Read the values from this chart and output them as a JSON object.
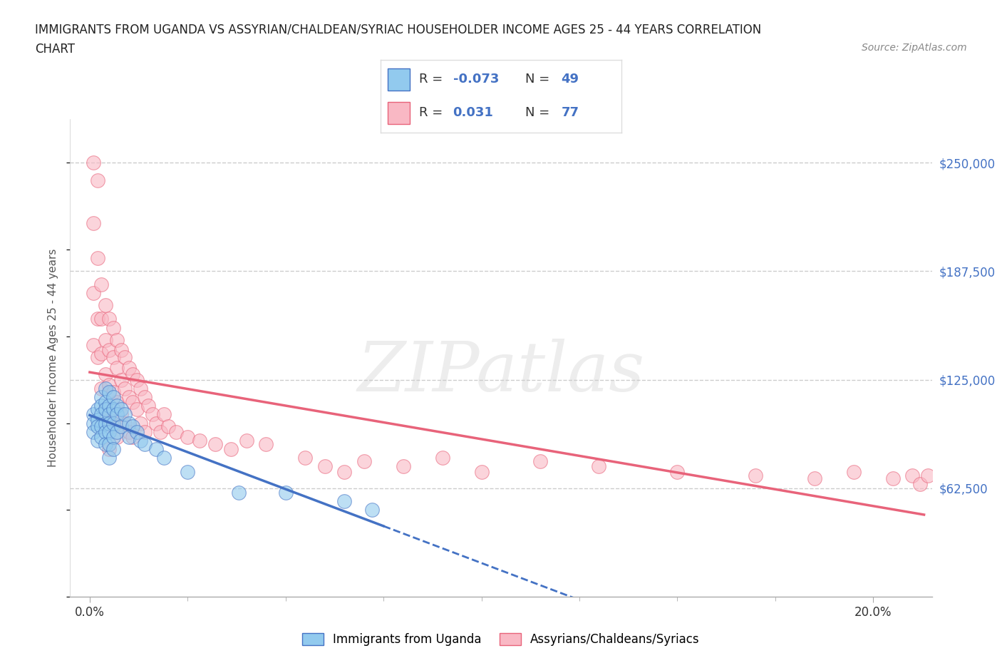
{
  "title_line1": "IMMIGRANTS FROM UGANDA VS ASSYRIAN/CHALDEAN/SYRIAC HOUSEHOLDER INCOME AGES 25 - 44 YEARS CORRELATION",
  "title_line2": "CHART",
  "source": "Source: ZipAtlas.com",
  "xlabel_ticks": [
    "0.0%",
    "20.0%"
  ],
  "xlabel_tick_vals": [
    0.0,
    0.2
  ],
  "ylabel": "Householder Income Ages 25 - 44 years",
  "ylabel_ticks": [
    "$62,500",
    "$125,000",
    "$187,500",
    "$250,000"
  ],
  "ylabel_tick_vals": [
    62500,
    125000,
    187500,
    250000
  ],
  "ylim": [
    0,
    275000
  ],
  "xlim": [
    -0.005,
    0.215
  ],
  "legend_labels": [
    "Immigrants from Uganda",
    "Assyrians/Chaldeans/Syriacs"
  ],
  "R_uganda": -0.073,
  "N_uganda": 49,
  "R_assyrian": 0.031,
  "N_assyrian": 77,
  "color_uganda": "#92CAEE",
  "color_assyrian": "#F9B8C4",
  "line_color_uganda": "#4472C4",
  "line_color_assyrian": "#E8637A",
  "watermark": "ZIPatlas",
  "background_color": "#FFFFFF",
  "grid_color": "#CCCCCC",
  "right_tick_color": "#4472C4",
  "uganda_points_x": [
    0.001,
    0.001,
    0.001,
    0.002,
    0.002,
    0.002,
    0.002,
    0.003,
    0.003,
    0.003,
    0.003,
    0.003,
    0.004,
    0.004,
    0.004,
    0.004,
    0.004,
    0.004,
    0.005,
    0.005,
    0.005,
    0.005,
    0.005,
    0.005,
    0.005,
    0.006,
    0.006,
    0.006,
    0.006,
    0.006,
    0.007,
    0.007,
    0.007,
    0.008,
    0.008,
    0.009,
    0.01,
    0.01,
    0.011,
    0.012,
    0.013,
    0.014,
    0.017,
    0.019,
    0.025,
    0.038,
    0.05,
    0.065,
    0.072
  ],
  "uganda_points_y": [
    105000,
    100000,
    95000,
    108000,
    102000,
    98000,
    90000,
    115000,
    110000,
    105000,
    98000,
    92000,
    120000,
    112000,
    108000,
    100000,
    95000,
    88000,
    118000,
    110000,
    105000,
    100000,
    95000,
    88000,
    80000,
    115000,
    108000,
    100000,
    92000,
    85000,
    110000,
    105000,
    95000,
    108000,
    98000,
    105000,
    100000,
    92000,
    98000,
    95000,
    90000,
    88000,
    85000,
    80000,
    72000,
    60000,
    60000,
    55000,
    50000
  ],
  "assyrian_points_x": [
    0.001,
    0.001,
    0.001,
    0.002,
    0.002,
    0.002,
    0.003,
    0.003,
    0.003,
    0.003,
    0.004,
    0.004,
    0.004,
    0.004,
    0.005,
    0.005,
    0.005,
    0.005,
    0.005,
    0.006,
    0.006,
    0.006,
    0.006,
    0.007,
    0.007,
    0.007,
    0.007,
    0.008,
    0.008,
    0.008,
    0.009,
    0.009,
    0.009,
    0.01,
    0.01,
    0.01,
    0.011,
    0.011,
    0.011,
    0.012,
    0.012,
    0.013,
    0.013,
    0.014,
    0.014,
    0.015,
    0.016,
    0.017,
    0.018,
    0.019,
    0.02,
    0.022,
    0.025,
    0.028,
    0.032,
    0.036,
    0.04,
    0.045,
    0.055,
    0.06,
    0.065,
    0.07,
    0.08,
    0.09,
    0.1,
    0.115,
    0.13,
    0.15,
    0.17,
    0.185,
    0.195,
    0.205,
    0.21,
    0.212,
    0.214,
    0.001,
    0.002
  ],
  "assyrian_points_y": [
    215000,
    175000,
    145000,
    195000,
    160000,
    138000,
    180000,
    160000,
    140000,
    120000,
    168000,
    148000,
    128000,
    108000,
    160000,
    142000,
    122000,
    102000,
    85000,
    155000,
    138000,
    118000,
    98000,
    148000,
    132000,
    112000,
    92000,
    142000,
    125000,
    105000,
    138000,
    120000,
    100000,
    132000,
    115000,
    95000,
    128000,
    112000,
    92000,
    125000,
    108000,
    120000,
    100000,
    115000,
    95000,
    110000,
    105000,
    100000,
    95000,
    105000,
    98000,
    95000,
    92000,
    90000,
    88000,
    85000,
    90000,
    88000,
    80000,
    75000,
    72000,
    78000,
    75000,
    80000,
    72000,
    78000,
    75000,
    72000,
    70000,
    68000,
    72000,
    68000,
    70000,
    65000,
    70000,
    250000,
    240000
  ]
}
